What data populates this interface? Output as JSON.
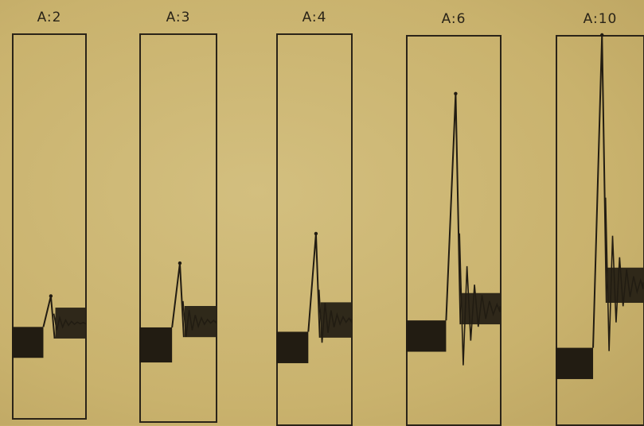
{
  "chart_data": [
    {
      "type": "line",
      "title": "A:2",
      "baseline": 0.2,
      "noise_band": 0.08,
      "peak": 0.32,
      "post_level": 0.25,
      "post_band": 0.08
    },
    {
      "type": "line",
      "title": "A:3",
      "baseline": 0.2,
      "noise_band": 0.09,
      "peak": 0.41,
      "post_level": 0.26,
      "post_band": 0.08
    },
    {
      "type": "line",
      "title": "A:4",
      "baseline": 0.2,
      "noise_band": 0.08,
      "peak": 0.49,
      "post_level": 0.27,
      "post_band": 0.09
    },
    {
      "type": "line",
      "title": "A:6",
      "baseline": 0.23,
      "noise_band": 0.08,
      "peak": 0.85,
      "post_level": 0.3,
      "post_band": 0.08
    },
    {
      "type": "line",
      "title": "A:10",
      "baseline": 0.16,
      "noise_band": 0.08,
      "peak": 1.0,
      "post_level": 0.36,
      "post_band": 0.09
    }
  ]
}
